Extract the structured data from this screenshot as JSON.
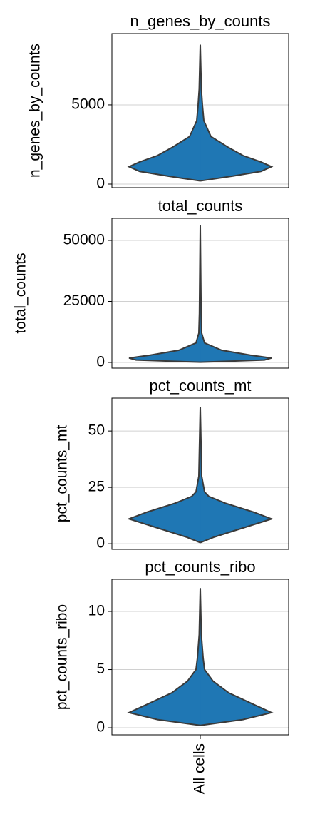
{
  "chart_data": [
    {
      "type": "violin",
      "title": "n_genes_by_counts",
      "ylabel": "n_genes_by_counts",
      "categories": [
        null
      ],
      "color": "#1f77b4",
      "grid": true,
      "ylim": [
        -225,
        9500
      ],
      "yticks": [
        0,
        5000
      ],
      "violin": {
        "y": [
          200,
          500,
          800,
          1100,
          1400,
          1800,
          2300,
          3000,
          4000,
          5000,
          6000,
          8800
        ],
        "density": [
          0,
          0.45,
          0.85,
          1.0,
          0.85,
          0.6,
          0.4,
          0.15,
          0.05,
          0.03,
          0.015,
          0
        ]
      }
    },
    {
      "type": "violin",
      "title": "total_counts",
      "ylabel": "total_counts",
      "categories": [
        null
      ],
      "color": "#1f77b4",
      "grid": true,
      "ylim": [
        -2339,
        59060
      ],
      "yticks": [
        0,
        25000,
        50000
      ],
      "violin": {
        "y": [
          100,
          1000,
          1800,
          3000,
          5000,
          8000,
          12000,
          20000,
          56100
        ],
        "density": [
          0,
          0.9,
          1.0,
          0.7,
          0.3,
          0.06,
          0.02,
          0.012,
          0
        ]
      }
    },
    {
      "type": "violin",
      "title": "pct_counts_mt",
      "ylabel": "pct_counts_mt",
      "categories": [
        null
      ],
      "color": "#1f77b4",
      "grid": true,
      "ylim": [
        -2.5,
        64.6
      ],
      "yticks": [
        0,
        25,
        50
      ],
      "violin": {
        "y": [
          0.5,
          3,
          7,
          11,
          14,
          18,
          21,
          23,
          30,
          60.8
        ],
        "density": [
          0,
          0.2,
          0.6,
          1.0,
          0.75,
          0.35,
          0.12,
          0.06,
          0.02,
          0
        ]
      }
    },
    {
      "type": "violin",
      "title": "pct_counts_ribo",
      "ylabel": "pct_counts_ribo",
      "categories": [
        "All cells"
      ],
      "color": "#1f77b4",
      "grid": true,
      "ylim": [
        -0.61,
        12.76
      ],
      "yticks": [
        0,
        5,
        10
      ],
      "violin": {
        "y": [
          0.2,
          0.7,
          1.3,
          2,
          3,
          4,
          5,
          6,
          8,
          12
        ],
        "density": [
          0,
          0.6,
          1.0,
          0.75,
          0.4,
          0.18,
          0.06,
          0.04,
          0.015,
          0
        ]
      }
    }
  ]
}
